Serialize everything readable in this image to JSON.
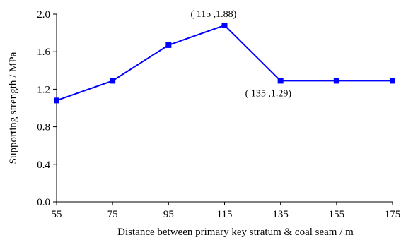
{
  "chart_data": {
    "type": "line",
    "title": "",
    "xlabel": "Distance between primary key stratum & coal seam / m",
    "ylabel": "Supporting strength / MPa",
    "x": [
      55,
      75,
      95,
      115,
      135,
      155,
      175
    ],
    "xlim": [
      55,
      175
    ],
    "xticks": [
      "55",
      "75",
      "95",
      "115",
      "135",
      "155",
      "175"
    ],
    "ylim": [
      0,
      2.0
    ],
    "yticks": [
      "0.0",
      "0.4",
      "0.8",
      "1.2",
      "1.6",
      "2.0"
    ],
    "grid": false,
    "legend": "none",
    "series": [
      {
        "values": [
          1.08,
          1.29,
          1.67,
          1.88,
          1.29,
          1.29,
          1.29
        ],
        "color": "#0000FF",
        "marker": "square"
      }
    ],
    "annotations": [
      {
        "text": "( 115 ,1.88)",
        "x": 115,
        "y": 1.88,
        "placement": "above"
      },
      {
        "text": "( 135 ,1.29)",
        "x": 135,
        "y": 1.29,
        "placement": "below-right"
      }
    ]
  }
}
